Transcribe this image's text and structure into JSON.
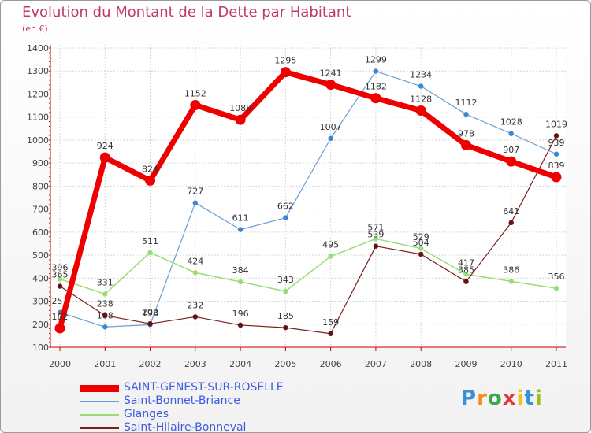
{
  "title": "Evolution du Montant de la Dette par Habitant",
  "subtitle": "(en €)",
  "logo": [
    "P",
    "r",
    "o",
    "x",
    "i",
    "t",
    "i"
  ],
  "logo_colors": [
    "#3a8fd8",
    "#f28c1a",
    "#3aa84a",
    "#e23a3a",
    "#f2c21a",
    "#3a8fd8",
    "#8fc21a"
  ],
  "chart_data": {
    "type": "line",
    "x": [
      "2000",
      "2001",
      "2002",
      "2003",
      "2004",
      "2005",
      "2006",
      "2007",
      "2008",
      "2009",
      "2010",
      "2011"
    ],
    "yticks": [
      100,
      200,
      300,
      400,
      500,
      600,
      700,
      800,
      900,
      1000,
      1100,
      1200,
      1300,
      1400
    ],
    "ylim": [
      100,
      1400
    ],
    "grid": true,
    "legend_position": "bottom",
    "series": [
      {
        "name": "SAINT-GENEST-SUR-ROSELLE",
        "color": "#ee0000",
        "width": 7,
        "values": [
          182,
          924,
          824,
          1152,
          1088,
          1295,
          1241,
          1182,
          1128,
          978,
          907,
          839
        ]
      },
      {
        "name": "Saint-Bonnet-Briance",
        "color": "#6b9fd2",
        "width": 1.2,
        "values": [
          251,
          188,
          198,
          727,
          611,
          662,
          1007,
          1299,
          1234,
          1112,
          1028,
          939
        ]
      },
      {
        "name": "Glanges",
        "color": "#99dd77",
        "width": 1.5,
        "values": [
          396,
          331,
          511,
          424,
          384,
          343,
          495,
          571,
          529,
          417,
          386,
          356
        ]
      },
      {
        "name": "Saint-Hilaire-Bonneval",
        "color": "#7a1f1f",
        "width": 1.2,
        "values": [
          365,
          238,
          202,
          232,
          196,
          185,
          159,
          539,
          504,
          385,
          641,
          1019
        ]
      }
    ]
  }
}
